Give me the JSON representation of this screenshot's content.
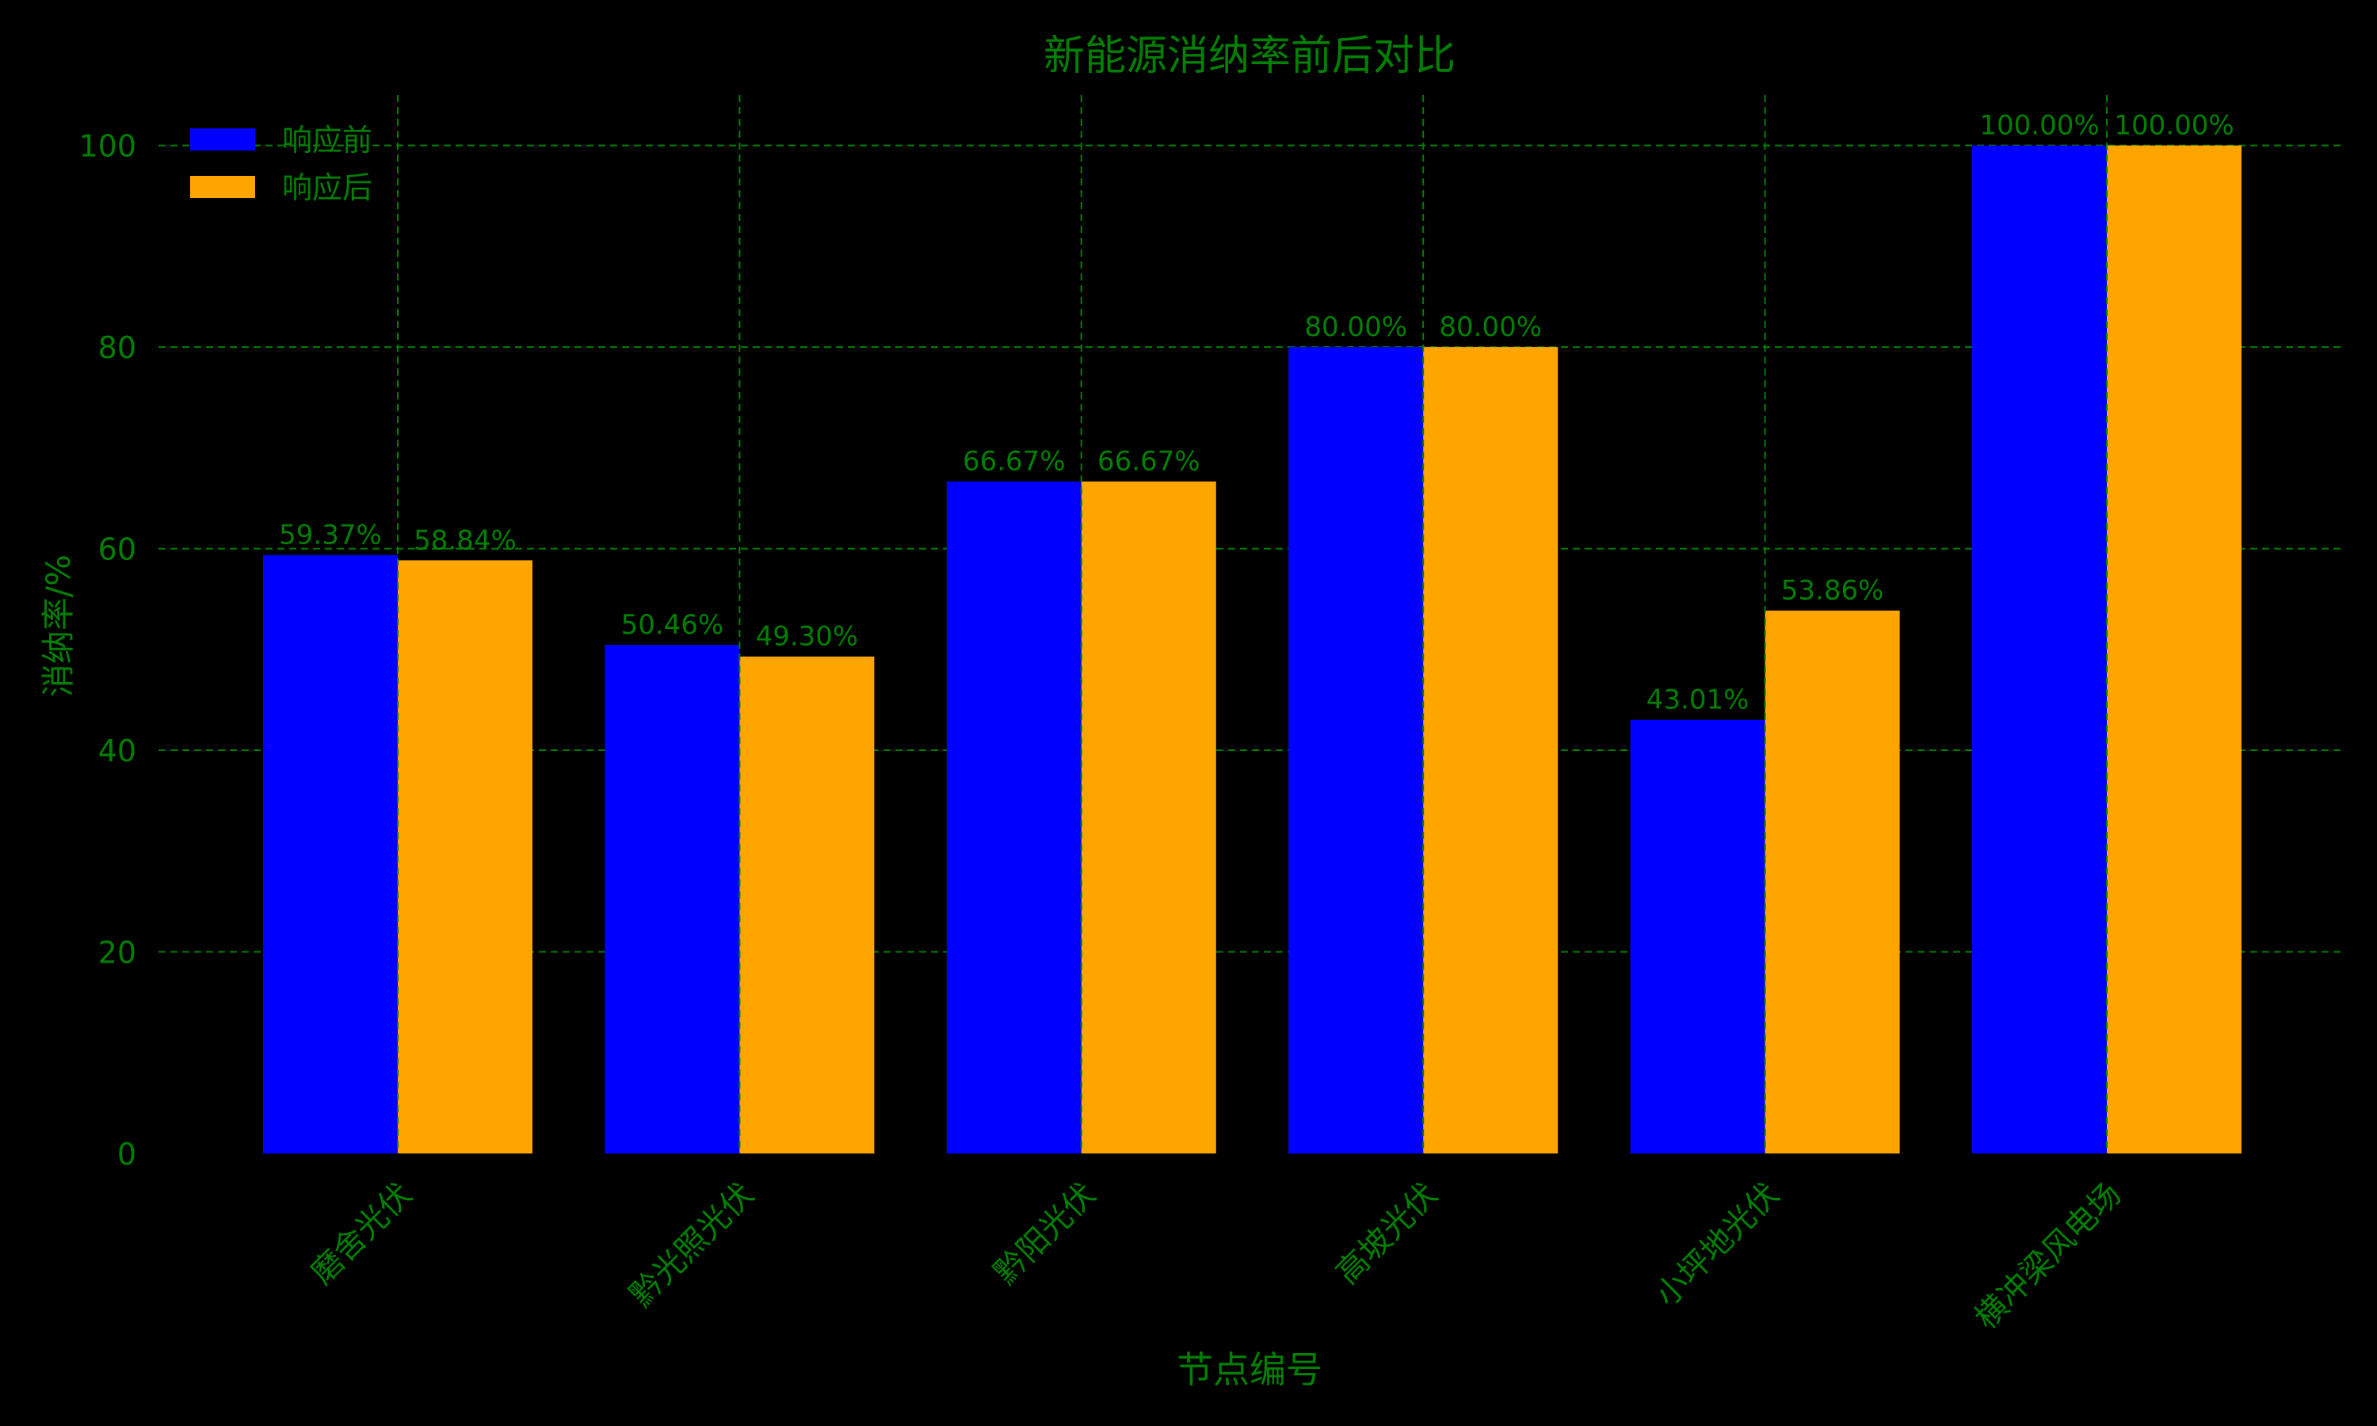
{
  "colors": {
    "background": "#000000",
    "text": "#008000",
    "grid": "#008000",
    "before": "#0000FF",
    "after": "#FFA500"
  },
  "chart_data": {
    "type": "bar",
    "title": "新能源消纳率前后对比",
    "xlabel": "节点编号",
    "ylabel": "消纳率/%",
    "categories": [
      "磨舍光伏",
      "黔光照光伏",
      "黔阳光伏",
      "高坡光伏",
      "小坪地光伏",
      "横冲梁风电场"
    ],
    "series": [
      {
        "name": "响应前",
        "color": "#0000FF",
        "values": [
          59.37,
          50.46,
          66.67,
          80.0,
          43.01,
          100.0
        ],
        "labels": [
          "59.37%",
          "50.46%",
          "66.67%",
          "80.00%",
          "43.01%",
          "100.00%"
        ]
      },
      {
        "name": "响应后",
        "color": "#FFA500",
        "values": [
          58.84,
          49.3,
          66.67,
          80.0,
          53.86,
          100.0
        ],
        "labels": [
          "58.84%",
          "49.30%",
          "66.67%",
          "80.00%",
          "53.86%",
          "100.00%"
        ]
      }
    ],
    "ylim": [
      0,
      105
    ],
    "yticks": [
      0,
      20,
      40,
      60,
      80,
      100
    ],
    "grid": true,
    "legend_position": "top-left"
  }
}
